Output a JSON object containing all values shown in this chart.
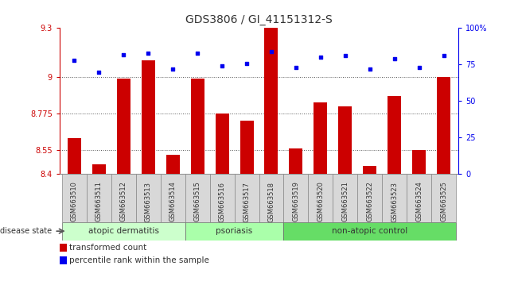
{
  "title": "GDS3806 / GI_41151312-S",
  "samples": [
    "GSM663510",
    "GSM663511",
    "GSM663512",
    "GSM663513",
    "GSM663514",
    "GSM663515",
    "GSM663516",
    "GSM663517",
    "GSM663518",
    "GSM663519",
    "GSM663520",
    "GSM663521",
    "GSM663522",
    "GSM663523",
    "GSM663524",
    "GSM663525"
  ],
  "red_values": [
    8.62,
    8.46,
    8.99,
    9.1,
    8.52,
    8.99,
    8.775,
    8.73,
    9.3,
    8.56,
    8.84,
    8.82,
    8.45,
    8.88,
    8.55,
    9.0
  ],
  "blue_values": [
    78,
    70,
    82,
    83,
    72,
    83,
    74,
    76,
    84,
    73,
    80,
    81,
    72,
    79,
    73,
    81
  ],
  "ylim_left": [
    8.4,
    9.3
  ],
  "ylim_right": [
    0,
    100
  ],
  "yticks_left": [
    8.4,
    8.55,
    8.775,
    9.0,
    9.3
  ],
  "ytick_labels_left": [
    "8.4",
    "8.55",
    "8.775",
    "9",
    "9.3"
  ],
  "yticks_right": [
    0,
    25,
    50,
    75,
    100
  ],
  "ytick_labels_right": [
    "0",
    "25",
    "50",
    "75",
    "100%"
  ],
  "hlines": [
    9.0,
    8.775,
    8.55
  ],
  "groups": [
    {
      "label": "atopic dermatitis",
      "start": 0,
      "end": 5
    },
    {
      "label": "psoriasis",
      "start": 5,
      "end": 9
    },
    {
      "label": "non-atopic control",
      "start": 9,
      "end": 16
    }
  ],
  "group_colors": [
    "#ccffcc",
    "#aaffaa",
    "#66dd66"
  ],
  "bar_color": "#cc0000",
  "dot_color": "#0000ee",
  "bar_width": 0.55,
  "title_color": "#333333",
  "left_axis_color": "#cc0000",
  "right_axis_color": "#0000ee",
  "bg_color": "#ffffff",
  "plot_bg": "#ffffff",
  "group_label_fontsize": 7.5,
  "title_fontsize": 10,
  "tick_fontsize": 7,
  "sample_fontsize": 6,
  "legend_fontsize": 7.5
}
